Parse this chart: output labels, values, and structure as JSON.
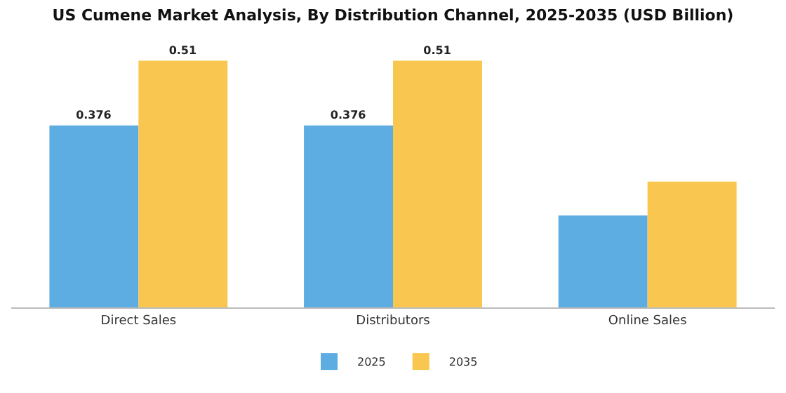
{
  "chart_data": {
    "type": "bar",
    "title": "US Cumene Market Analysis, By Distribution Channel, 2025-2035 (USD Billion)",
    "categories": [
      "Direct Sales",
      "Distributors",
      "Online Sales"
    ],
    "series": [
      {
        "name": "2025",
        "color": "#5dade2",
        "values": [
          0.376,
          0.376,
          0.19
        ],
        "value_labels": [
          "0.376",
          "0.376",
          null
        ]
      },
      {
        "name": "2035",
        "color": "#f9c74f",
        "values": [
          0.51,
          0.51,
          0.26
        ],
        "value_labels": [
          "0.51",
          "0.51",
          null
        ]
      }
    ],
    "legend": "bottom",
    "grid": false
  }
}
